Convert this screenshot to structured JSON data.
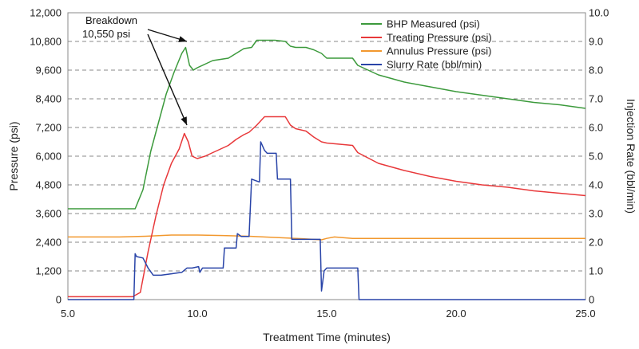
{
  "chart_data": {
    "type": "line",
    "title": "",
    "xlabel": "Treatment Time (minutes)",
    "ylabel": "Pressure (psi)",
    "y2label": "Injection Rate (bbl/min)",
    "xlim": [
      5.0,
      25.0
    ],
    "ylim": [
      0,
      12000
    ],
    "y2lim": [
      0,
      10.0
    ],
    "xticks": [
      "5.0",
      "10.0",
      "15.0",
      "20.0",
      "25.0"
    ],
    "yticks": [
      "0",
      "1,200",
      "2,400",
      "3,600",
      "4,800",
      "6,000",
      "7,200",
      "8,400",
      "9,600",
      "10,800",
      "12,000"
    ],
    "y2ticks": [
      "0",
      "1.0",
      "2.0",
      "3.0",
      "4.0",
      "5.0",
      "6.0",
      "7.0",
      "8.0",
      "9.0",
      "10.0"
    ],
    "grid": "horizontal dashed",
    "legend_position": "top-right",
    "annotation": {
      "line1": "Breakdown",
      "line2": "10,550 psi"
    },
    "series": [
      {
        "name": "BHP Measured (psi)",
        "color": "#3c9a3c",
        "axis": "left",
        "x": [
          5.0,
          7.6,
          7.9,
          8.2,
          8.5,
          8.8,
          9.1,
          9.4,
          9.55,
          9.7,
          9.85,
          10.0,
          10.3,
          10.6,
          10.9,
          11.2,
          11.5,
          11.8,
          12.1,
          12.3,
          12.6,
          13.0,
          13.4,
          13.6,
          13.8,
          14.2,
          14.5,
          14.8,
          15.0,
          15.5,
          16.0,
          16.2,
          17.0,
          18.0,
          19.0,
          20.0,
          21.0,
          22.0,
          23.0,
          24.0,
          25.0
        ],
        "y": [
          3800,
          3800,
          4600,
          6200,
          7400,
          8600,
          9500,
          10300,
          10550,
          9800,
          9600,
          9700,
          9850,
          10000,
          10050,
          10100,
          10300,
          10500,
          10550,
          10850,
          10850,
          10850,
          10800,
          10600,
          10550,
          10550,
          10450,
          10300,
          10100,
          10100,
          10100,
          9800,
          9400,
          9100,
          8900,
          8700,
          8550,
          8400,
          8250,
          8150,
          8000
        ]
      },
      {
        "name": "Treating Pressure (psi)",
        "color": "#e8383a",
        "axis": "left",
        "x": [
          5.0,
          7.5,
          7.8,
          8.1,
          8.4,
          8.7,
          9.0,
          9.3,
          9.5,
          9.65,
          9.8,
          10.0,
          10.3,
          10.6,
          10.9,
          11.2,
          11.5,
          11.8,
          12.0,
          12.3,
          12.6,
          13.0,
          13.4,
          13.6,
          13.8,
          14.2,
          14.5,
          14.8,
          15.0,
          15.5,
          16.0,
          16.2,
          17.0,
          18.0,
          19.0,
          20.0,
          21.0,
          22.0,
          23.0,
          24.0,
          25.0
        ],
        "y": [
          120,
          120,
          300,
          2000,
          3500,
          4800,
          5700,
          6300,
          6950,
          6600,
          6000,
          5900,
          6000,
          6150,
          6300,
          6450,
          6700,
          6900,
          7000,
          7300,
          7650,
          7650,
          7650,
          7300,
          7150,
          7050,
          6800,
          6600,
          6550,
          6500,
          6450,
          6150,
          5700,
          5400,
          5150,
          4950,
          4800,
          4700,
          4550,
          4450,
          4350
        ]
      },
      {
        "name": "Annulus Pressure (psi)",
        "color": "#f2982e",
        "axis": "left",
        "x": [
          5.0,
          7.0,
          8.0,
          9.0,
          10.0,
          11.0,
          12.0,
          13.0,
          14.0,
          14.8,
          15.0,
          15.3,
          16.0,
          17.0,
          18.0,
          20.0,
          22.0,
          25.0
        ],
        "y": [
          2620,
          2620,
          2650,
          2700,
          2700,
          2680,
          2650,
          2600,
          2550,
          2500,
          2560,
          2620,
          2560,
          2560,
          2560,
          2560,
          2560,
          2560
        ]
      },
      {
        "name": "Slurry Rate (bbl/min)",
        "color": "#2944a8",
        "axis": "right",
        "x": [
          5.0,
          7.55,
          7.6,
          7.65,
          7.9,
          8.1,
          8.3,
          8.6,
          9.0,
          9.4,
          9.6,
          9.8,
          10.05,
          10.1,
          10.2,
          10.5,
          11.0,
          11.05,
          11.3,
          11.5,
          11.55,
          11.7,
          11.9,
          12.0,
          12.1,
          12.4,
          12.45,
          12.6,
          12.7,
          12.9,
          13.05,
          13.1,
          13.3,
          13.6,
          13.65,
          14.0,
          14.5,
          14.75,
          14.8,
          14.9,
          15.0,
          15.5,
          16.1,
          16.2,
          16.25,
          16.5,
          25.0
        ],
        "y": [
          0,
          0,
          1.6,
          1.5,
          1.45,
          1.1,
          0.85,
          0.85,
          0.9,
          0.95,
          1.1,
          1.1,
          1.15,
          0.95,
          1.1,
          1.1,
          1.1,
          1.8,
          1.8,
          1.8,
          2.3,
          2.2,
          2.2,
          2.2,
          4.2,
          4.1,
          5.5,
          5.2,
          5.1,
          5.1,
          5.1,
          4.2,
          4.2,
          4.2,
          2.1,
          2.1,
          2.1,
          2.1,
          0.3,
          1.0,
          1.1,
          1.1,
          1.1,
          1.1,
          0,
          0,
          0
        ]
      }
    ]
  }
}
